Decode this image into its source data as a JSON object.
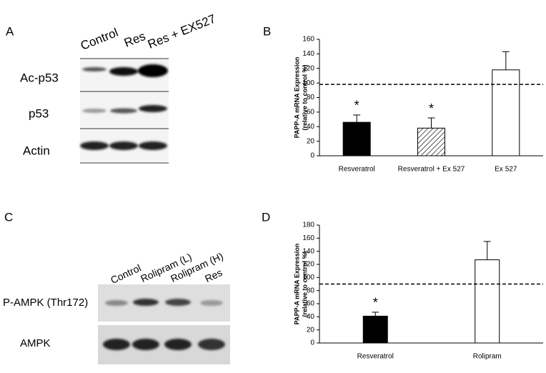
{
  "chart_data": [
    {
      "type": "bar",
      "panel": "B",
      "ylabel": [
        "PAPP-A mRNA Expression",
        "(relative to control %)"
      ],
      "categories": [
        "Resveratrol",
        "Resveratrol + Ex 527",
        "Ex 527"
      ],
      "values": [
        46,
        38,
        118
      ],
      "errors": [
        10,
        14,
        25
      ],
      "colors": [
        "#000000",
        "#ffffff",
        "#ffffff"
      ],
      "hatch": [
        false,
        true,
        false
      ],
      "value_annotations": [
        "*",
        "*",
        null
      ],
      "reference_line": 98,
      "ylim": [
        0,
        160
      ],
      "yticks": [
        0,
        20,
        40,
        60,
        80,
        100,
        120,
        140,
        160
      ]
    },
    {
      "type": "bar",
      "panel": "D",
      "ylabel": [
        "PAPP-A mRNA Expression",
        "(relative to control %)"
      ],
      "categories": [
        "Resveratrol",
        "Rolipram"
      ],
      "values": [
        41,
        127
      ],
      "errors": [
        6,
        28
      ],
      "colors": [
        "#000000",
        "#ffffff"
      ],
      "hatch": [
        false,
        false
      ],
      "value_annotations": [
        "*",
        null
      ],
      "reference_line": 90,
      "ylim": [
        0,
        180
      ],
      "yticks": [
        0,
        20,
        40,
        60,
        80,
        100,
        120,
        140,
        160,
        180
      ]
    }
  ],
  "blots": [
    {
      "panel": "A",
      "lanes": [
        "Control",
        "Res",
        "Res + EX527"
      ],
      "rows": [
        "Ac-p53",
        "p53",
        "Actin"
      ]
    },
    {
      "panel": "C",
      "lanes": [
        "Control",
        "Rolipram (L)",
        "Rolipram (H)",
        "Res"
      ],
      "rows": [
        "P-AMPK (Thr172)",
        "AMPK"
      ]
    }
  ]
}
